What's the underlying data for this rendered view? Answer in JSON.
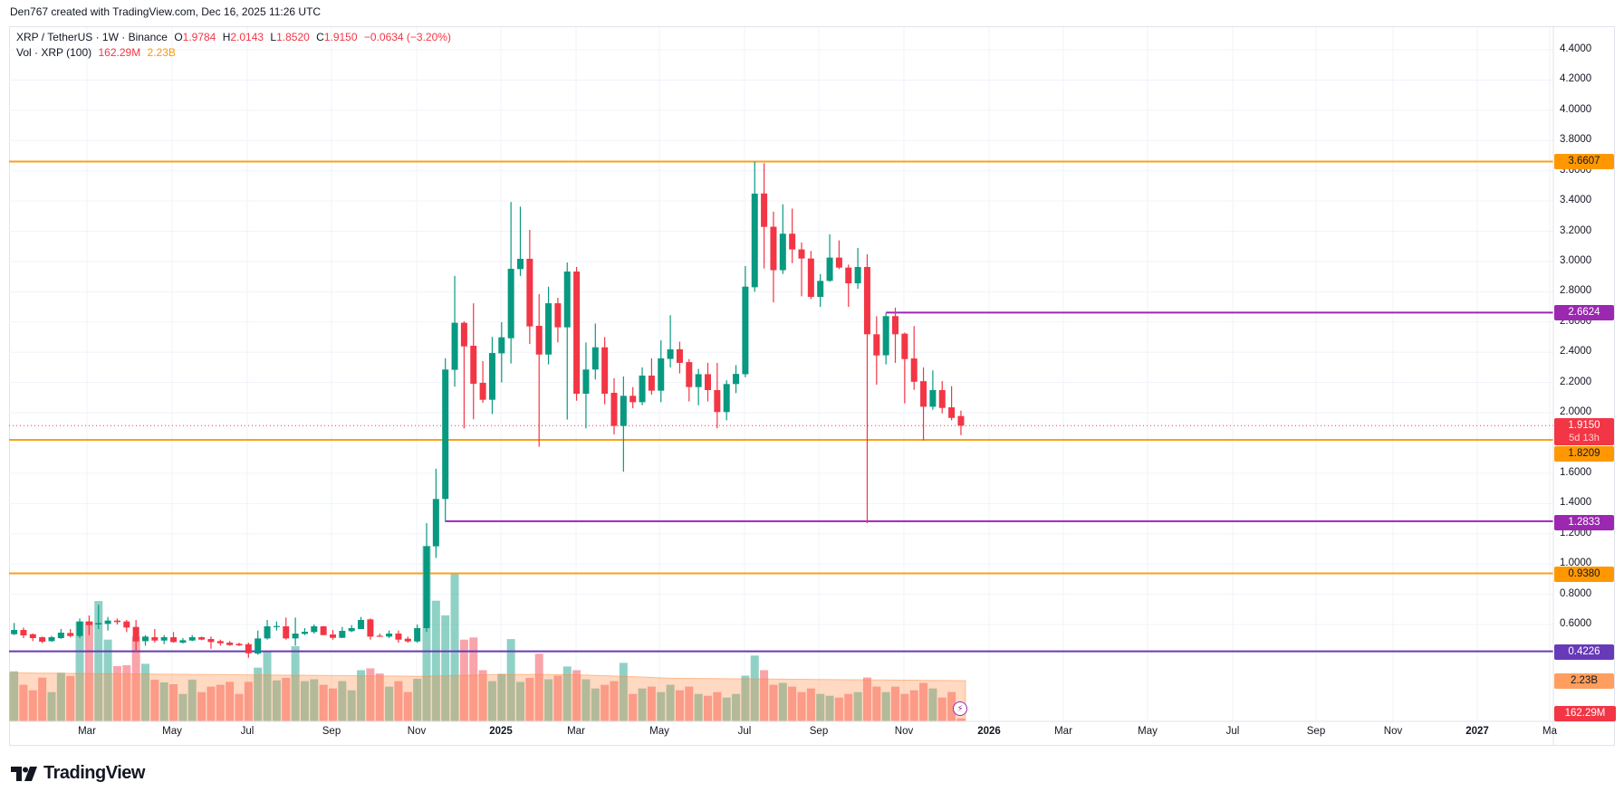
{
  "credit": "Den767 created with TradingView.com, Dec 16, 2025 11:26 UTC",
  "legend": {
    "symbol": "XRP / TetherUS · 1W · Binance",
    "open_label": "O",
    "open": "1.9784",
    "high_label": "H",
    "high": "2.0143",
    "low_label": "L",
    "low": "1.8520",
    "close_label": "C",
    "close": "1.9150",
    "change": "−0.0634 (−3.20%)",
    "vol_title": "Vol · XRP (100)",
    "vol_value": "162.29M",
    "vol_ma": "2.23B"
  },
  "axis_labels": {
    "resistance_top": "3.6607",
    "resistance_mid": "2.6624",
    "last_price": "1.9150",
    "countdown": "5d 13h",
    "support_1": "1.8209",
    "support_2": "1.2833",
    "support_3": "0.9380",
    "support_4": "0.4226",
    "vol_ma": "2.23B",
    "vol_last": "162.29M"
  },
  "colors": {
    "up": "#089981",
    "down": "#f23645",
    "orange_line": "#ff9800",
    "purple_line": "#9c27b0",
    "indigo_line": "#673ab7",
    "vol_ma": "#ff8a3d"
  },
  "branding": "TradingView",
  "chart_data": {
    "type": "candlestick",
    "title": "XRP / TetherUS · 1W · Binance",
    "y_ticks": [
      "4.4000",
      "4.2000",
      "4.0000",
      "3.8000",
      "3.6000",
      "3.4000",
      "3.2000",
      "3.0000",
      "2.8000",
      "2.6000",
      "2.4000",
      "2.2000",
      "2.0000",
      "1.6000",
      "1.4000",
      "1.2000",
      "1.0000",
      "0.8000",
      "0.6000"
    ],
    "ylim": [
      0.6,
      4.4
    ],
    "x_ticks": [
      "Mar",
      "May",
      "Jul",
      "Sep",
      "Nov",
      "2025",
      "Mar",
      "May",
      "Jul",
      "Sep",
      "Nov",
      "2026",
      "Mar",
      "May",
      "Jul",
      "Sep",
      "Nov",
      "2027",
      "Ma"
    ],
    "horizontal_levels": [
      {
        "price": 3.6607,
        "color": "orange",
        "from_candle": 0
      },
      {
        "price": 2.6624,
        "color": "purple",
        "from_candle": 93
      },
      {
        "price": 1.8209,
        "color": "orange",
        "from_candle": 0
      },
      {
        "price": 1.2833,
        "color": "purple",
        "from_candle": 46
      },
      {
        "price": 0.938,
        "color": "orange",
        "from_candle": 0
      },
      {
        "price": 0.4226,
        "color": "indigo",
        "from_candle": 0
      }
    ],
    "last_price": 1.915,
    "ohlc_order": [
      "open",
      "high",
      "low",
      "close"
    ],
    "candles": [
      [
        0.536,
        0.61,
        0.53,
        0.564
      ],
      [
        0.564,
        0.58,
        0.51,
        0.528
      ],
      [
        0.536,
        0.54,
        0.49,
        0.51
      ],
      [
        0.516,
        0.52,
        0.476,
        0.486
      ],
      [
        0.49,
        0.525,
        0.485,
        0.516
      ],
      [
        0.51,
        0.57,
        0.505,
        0.546
      ],
      [
        0.544,
        0.57,
        0.515,
        0.524
      ],
      [
        0.524,
        0.64,
        0.51,
        0.62
      ],
      [
        0.62,
        0.66,
        0.53,
        0.596
      ],
      [
        0.6,
        0.73,
        0.57,
        0.61
      ],
      [
        0.604,
        0.65,
        0.56,
        0.626
      ],
      [
        0.626,
        0.64,
        0.6,
        0.616
      ],
      [
        0.62,
        0.63,
        0.55,
        0.58
      ],
      [
        0.584,
        0.63,
        0.42,
        0.488
      ],
      [
        0.49,
        0.53,
        0.46,
        0.52
      ],
      [
        0.516,
        0.57,
        0.48,
        0.494
      ],
      [
        0.494,
        0.53,
        0.47,
        0.516
      ],
      [
        0.516,
        0.55,
        0.48,
        0.484
      ],
      [
        0.48,
        0.51,
        0.475,
        0.496
      ],
      [
        0.494,
        0.53,
        0.49,
        0.516
      ],
      [
        0.516,
        0.52,
        0.496,
        0.5
      ],
      [
        0.504,
        0.52,
        0.44,
        0.484
      ],
      [
        0.49,
        0.5,
        0.46,
        0.476
      ],
      [
        0.48,
        0.49,
        0.46,
        0.464
      ],
      [
        0.472,
        0.48,
        0.458,
        0.462
      ],
      [
        0.47,
        0.48,
        0.38,
        0.41
      ],
      [
        0.408,
        0.56,
        0.4,
        0.508
      ],
      [
        0.508,
        0.63,
        0.5,
        0.588
      ],
      [
        0.584,
        0.62,
        0.56,
        0.59
      ],
      [
        0.588,
        0.646,
        0.5,
        0.508
      ],
      [
        0.508,
        0.646,
        0.46,
        0.54
      ],
      [
        0.538,
        0.576,
        0.53,
        0.552
      ],
      [
        0.55,
        0.6,
        0.54,
        0.588
      ],
      [
        0.588,
        0.59,
        0.53,
        0.53
      ],
      [
        0.534,
        0.564,
        0.5,
        0.512
      ],
      [
        0.512,
        0.584,
        0.51,
        0.558
      ],
      [
        0.556,
        0.596,
        0.55,
        0.576
      ],
      [
        0.57,
        0.65,
        0.57,
        0.63
      ],
      [
        0.634,
        0.64,
        0.5,
        0.52
      ],
      [
        0.526,
        0.54,
        0.52,
        0.522
      ],
      [
        0.52,
        0.56,
        0.51,
        0.54
      ],
      [
        0.54,
        0.56,
        0.48,
        0.5
      ],
      [
        0.506,
        0.52,
        0.48,
        0.488
      ],
      [
        0.488,
        0.6,
        0.48,
        0.576
      ],
      [
        0.576,
        1.27,
        0.55,
        1.117
      ],
      [
        1.117,
        1.63,
        1.04,
        1.43
      ],
      [
        1.43,
        2.36,
        1.28,
        2.286
      ],
      [
        2.284,
        2.905,
        2.173,
        2.595
      ],
      [
        2.595,
        2.605,
        1.897,
        2.439
      ],
      [
        2.443,
        2.724,
        1.957,
        2.192
      ],
      [
        2.198,
        2.342,
        2.066,
        2.086
      ],
      [
        2.086,
        2.501,
        1.992,
        2.395
      ],
      [
        2.393,
        2.599,
        2.2,
        2.499
      ],
      [
        2.493,
        3.393,
        2.326,
        2.952
      ],
      [
        2.95,
        3.363,
        2.905,
        3.018
      ],
      [
        3.018,
        3.209,
        2.455,
        2.571
      ],
      [
        2.575,
        2.785,
        1.775,
        2.385
      ],
      [
        2.385,
        2.834,
        2.32,
        2.724
      ],
      [
        2.724,
        2.76,
        2.465,
        2.565
      ],
      [
        2.565,
        2.994,
        1.955,
        2.934
      ],
      [
        2.934,
        2.964,
        2.08,
        2.126
      ],
      [
        2.126,
        2.465,
        1.897,
        2.286
      ],
      [
        2.286,
        2.59,
        2.22,
        2.433
      ],
      [
        2.433,
        2.5,
        2.056,
        2.126
      ],
      [
        2.132,
        2.228,
        1.857,
        1.913
      ],
      [
        1.913,
        2.24,
        1.61,
        2.112
      ],
      [
        2.112,
        2.17,
        2.03,
        2.07
      ],
      [
        2.07,
        2.3,
        2.05,
        2.246
      ],
      [
        2.246,
        2.36,
        2.12,
        2.146
      ],
      [
        2.146,
        2.479,
        2.07,
        2.36
      ],
      [
        2.356,
        2.645,
        2.3,
        2.419
      ],
      [
        2.42,
        2.47,
        2.26,
        2.33
      ],
      [
        2.335,
        2.355,
        2.075,
        2.17
      ],
      [
        2.17,
        2.29,
        2.05,
        2.255
      ],
      [
        2.255,
        2.33,
        2.075,
        2.15
      ],
      [
        2.15,
        2.33,
        1.897,
        2.005
      ],
      [
        2.005,
        2.215,
        1.95,
        2.19
      ],
      [
        2.19,
        2.315,
        2.13,
        2.257
      ],
      [
        2.255,
        2.97,
        2.235,
        2.834
      ],
      [
        2.83,
        3.66,
        2.8,
        3.449
      ],
      [
        3.45,
        3.65,
        2.954,
        3.229
      ],
      [
        3.23,
        3.33,
        2.73,
        2.943
      ],
      [
        2.943,
        3.378,
        2.918,
        3.184
      ],
      [
        3.184,
        3.35,
        2.99,
        3.08
      ],
      [
        3.08,
        3.126,
        2.77,
        3.02
      ],
      [
        3.02,
        3.07,
        2.752,
        2.766
      ],
      [
        2.766,
        2.917,
        2.7,
        2.872
      ],
      [
        2.872,
        3.18,
        2.866,
        3.026
      ],
      [
        3.026,
        3.14,
        2.95,
        2.96
      ],
      [
        2.96,
        2.98,
        2.7,
        2.856
      ],
      [
        2.856,
        3.09,
        2.82,
        2.964
      ],
      [
        2.964,
        3.048,
        1.27,
        2.519
      ],
      [
        2.519,
        2.638,
        2.186,
        2.379
      ],
      [
        2.38,
        2.66,
        2.32,
        2.639
      ],
      [
        2.639,
        2.695,
        2.33,
        2.519
      ],
      [
        2.523,
        2.53,
        2.062,
        2.355
      ],
      [
        2.359,
        2.573,
        2.152,
        2.205
      ],
      [
        2.209,
        2.3,
        1.817,
        2.04
      ],
      [
        2.04,
        2.28,
        2.02,
        2.15
      ],
      [
        2.15,
        2.21,
        1.996,
        2.032
      ],
      [
        2.036,
        2.176,
        1.95,
        1.966
      ],
      [
        1.9784,
        2.0143,
        1.852,
        1.915
      ]
    ],
    "volume_billions": [
      2.74,
      2.0,
      1.7,
      2.39,
      1.6,
      2.66,
      2.48,
      5.46,
      5.46,
      6.58,
      4.47,
      3.02,
      3.07,
      4.64,
      3.15,
      2.28,
      2.13,
      2.03,
      1.5,
      2.28,
      1.6,
      1.9,
      2.0,
      2.16,
      1.5,
      2.16,
      2.94,
      3.81,
      2.24,
      2.38,
      4.11,
      2.2,
      2.3,
      2.0,
      1.8,
      2.2,
      1.7,
      2.8,
      2.9,
      2.62,
      1.9,
      2.2,
      1.6,
      2.33,
      9.6,
      6.6,
      5.8,
      8.07,
      4.47,
      4.59,
      2.8,
      2.2,
      2.6,
      4.5,
      2.16,
      2.38,
      3.7,
      2.3,
      2.5,
      3.0,
      2.8,
      2.3,
      1.8,
      2.0,
      2.2,
      3.2,
      1.5,
      1.8,
      1.9,
      1.6,
      2.0,
      1.7,
      1.9,
      1.5,
      1.4,
      1.6,
      1.3,
      1.5,
      2.5,
      3.6,
      2.8,
      2.0,
      2.1,
      1.9,
      1.6,
      1.8,
      1.5,
      1.4,
      1.3,
      1.5,
      1.6,
      2.4,
      1.9,
      1.6,
      1.9,
      1.5,
      1.7,
      2.1,
      1.8,
      1.3,
      1.6,
      0.16229
    ],
    "volume_ma_billions": {
      "start": 2.65,
      "end": 2.23
    }
  }
}
